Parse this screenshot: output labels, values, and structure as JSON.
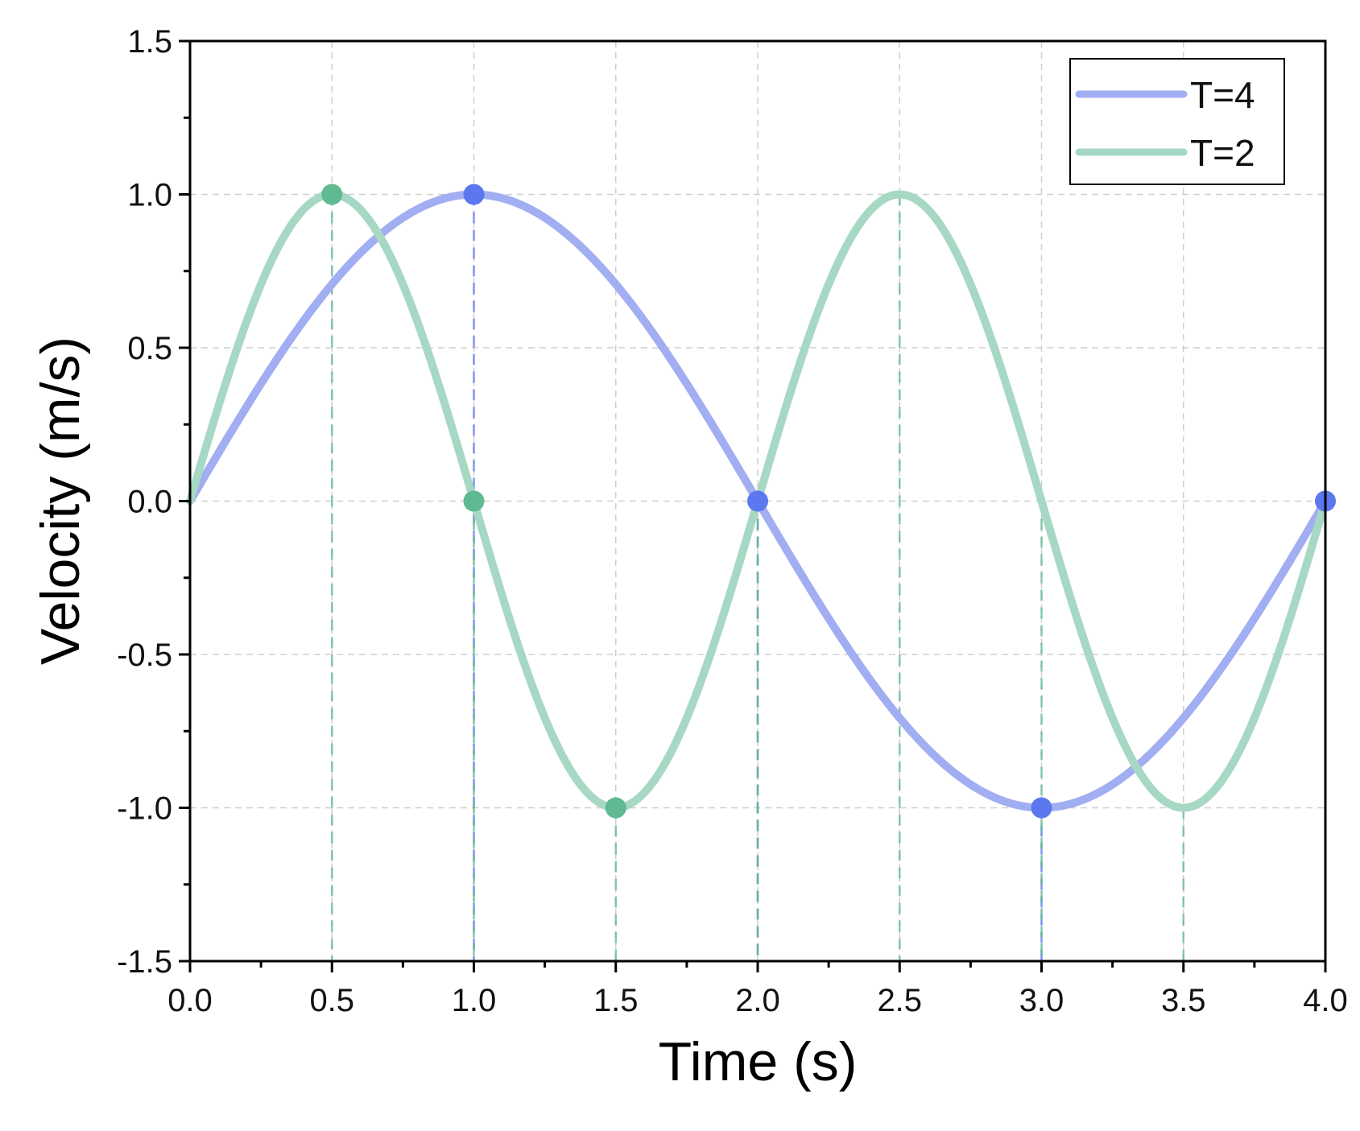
{
  "chart_data": {
    "type": "line",
    "title": "",
    "xlabel": "Time (s)",
    "ylabel": "Velocity (m/s)",
    "xlim": [
      0,
      4
    ],
    "ylim": [
      -1.5,
      1.5
    ],
    "x_major_ticks": [
      "0.0",
      "0.5",
      "1.0",
      "1.5",
      "2.0",
      "2.5",
      "3.0",
      "3.5",
      "4.0"
    ],
    "y_major_ticks": [
      "1.5",
      "1.0",
      "0.5",
      "0.0",
      "-0.5",
      "-1.0",
      "-1.5"
    ],
    "x_major_values": [
      0,
      0.5,
      1,
      1.5,
      2,
      2.5,
      3,
      3.5,
      4
    ],
    "y_major_values": [
      1.5,
      1.0,
      0.5,
      0.0,
      -0.5,
      -1.0,
      -1.5
    ],
    "grid": true,
    "legend_position": "top-right",
    "series": [
      {
        "name": "T=4",
        "function": "sin(2*pi*t/4)",
        "period": 4,
        "color": "#a2aef2",
        "marker_color": "#5b78ee",
        "markers": [
          [
            1,
            1
          ],
          [
            2,
            0
          ],
          [
            3,
            -1
          ],
          [
            4,
            0
          ]
        ],
        "drop_lines_x": [
          1,
          2,
          3
        ]
      },
      {
        "name": "T=2",
        "function": "sin(2*pi*t/2)",
        "period": 2,
        "color": "#a6d8c4",
        "marker_color": "#5fb991",
        "markers": [
          [
            0.5,
            1
          ],
          [
            1,
            0
          ],
          [
            1.5,
            -1
          ]
        ],
        "drop_lines_x": [
          0.5,
          1,
          1.5,
          2,
          2.5,
          3,
          3.5
        ]
      }
    ]
  }
}
